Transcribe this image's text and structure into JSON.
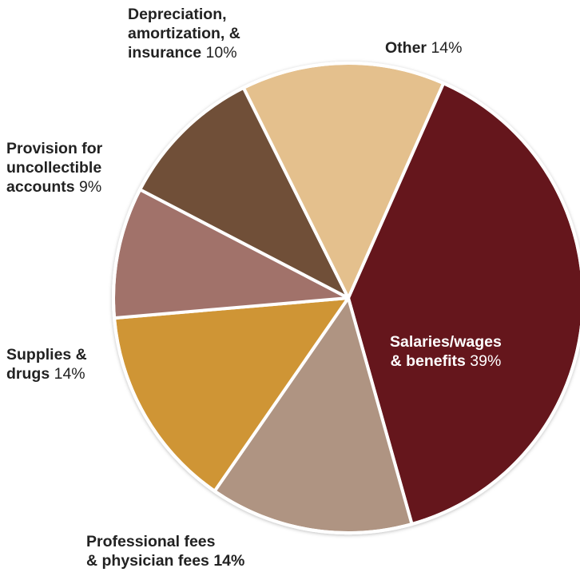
{
  "chart_data": {
    "type": "pie",
    "start_angle_deg": 66.1,
    "direction": "clockwise",
    "slices": [
      {
        "name": "Salaries/wages & benefits",
        "label_bold": [
          "Salaries/wages",
          "& benefits"
        ],
        "value": 39,
        "value_label": "39%",
        "color": "#65161a"
      },
      {
        "name": "Professional fees & physician fees",
        "label_bold": [
          "Professional fees",
          "& physician fees 14%"
        ],
        "value": 14,
        "value_label": "",
        "color": "#af9482"
      },
      {
        "name": "Supplies & drugs",
        "label_bold": [
          "Supplies &",
          "drugs"
        ],
        "value": 14,
        "value_label": "14%",
        "color": "#cf9535"
      },
      {
        "name": "Provision for uncollectible accounts",
        "label_bold": [
          "Provision for",
          "uncollectible",
          "accounts"
        ],
        "value": 9,
        "value_label": "9%",
        "color": "#a1726a"
      },
      {
        "name": "Depreciation, amortization, & insurance",
        "label_bold": [
          "Depreciation,",
          "amortization, &",
          "insurance"
        ],
        "value": 10,
        "value_label": "10%",
        "color": "#6f4f39"
      },
      {
        "name": "Other",
        "label_bold": [
          "Other"
        ],
        "value": 14,
        "value_label": "14%",
        "color": "#e4c08d"
      }
    ]
  }
}
